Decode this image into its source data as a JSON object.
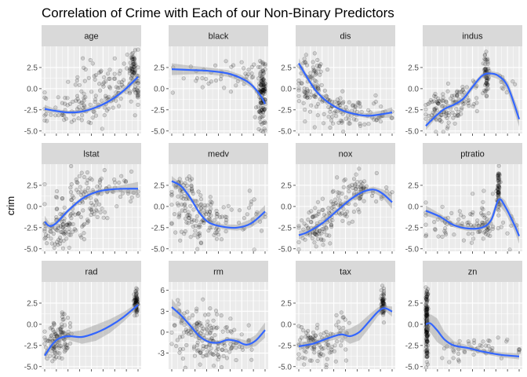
{
  "chart_data": {
    "type": "scatter",
    "title": "Correlation of Crime with Each of our Non-Binary Predictors",
    "ylabel": "crim",
    "facet_layout": {
      "columns": 4,
      "rows": 3
    },
    "smoother": true,
    "grid": true,
    "colors": {
      "panel_bg": "#ebebeb",
      "strip_bg": "#d9d9d9",
      "grid_major": "#ffffff",
      "points": "#000000",
      "smooth_line": "#3366ff",
      "ribbon": "#999999"
    },
    "panels": [
      {
        "name": "age",
        "ylim": [
          -5.3,
          5.0
        ],
        "y_ticks": [
          2.5,
          0.0,
          -2.5,
          -5.0
        ],
        "y_tick_labels": [
          "2.5",
          "0.0",
          "-2.5",
          "-5.0"
        ],
        "clusters": [
          {
            "x": 0.75,
            "y": 0.6,
            "sx": 0.22,
            "sy": 1.5,
            "n": 110
          },
          {
            "x": 0.3,
            "y": -2.3,
            "sx": 0.22,
            "sy": 1.0,
            "n": 70
          },
          {
            "x": 0.95,
            "y": 2.6,
            "sx": 0.02,
            "sy": 0.9,
            "n": 40
          }
        ],
        "smooth": [
          [
            0.0,
            -2.4
          ],
          [
            0.1,
            -2.6
          ],
          [
            0.25,
            -2.8
          ],
          [
            0.4,
            -2.7
          ],
          [
            0.55,
            -2.2
          ],
          [
            0.7,
            -1.4
          ],
          [
            0.85,
            -0.2
          ],
          [
            1.0,
            1.4
          ]
        ],
        "band": [
          0.5,
          0.25,
          0.2,
          0.25,
          0.3,
          0.3,
          0.3,
          0.45
        ]
      },
      {
        "name": "black",
        "ylim": [
          -5.3,
          5.0
        ],
        "y_ticks": [
          2.5,
          0.0,
          -2.5,
          -5.0
        ],
        "y_tick_labels": [
          "2.5",
          "0.0",
          "-2.5",
          "-5.0"
        ],
        "clusters": [
          {
            "x": 0.97,
            "y": -0.8,
            "sx": 0.025,
            "sy": 1.8,
            "n": 130
          },
          {
            "x": 0.55,
            "y": 1.7,
            "sx": 0.28,
            "sy": 1.0,
            "n": 45
          }
        ],
        "smooth": [
          [
            0.0,
            2.3
          ],
          [
            0.2,
            2.2
          ],
          [
            0.4,
            2.1
          ],
          [
            0.6,
            1.8
          ],
          [
            0.75,
            1.2
          ],
          [
            0.85,
            0.5
          ],
          [
            0.95,
            -0.8
          ],
          [
            1.0,
            -1.8
          ]
        ],
        "band": [
          0.7,
          0.5,
          0.4,
          0.4,
          0.4,
          0.35,
          0.2,
          0.2
        ]
      },
      {
        "name": "dis",
        "ylim": [
          -5.3,
          5.0
        ],
        "y_ticks": [
          2.5,
          0.0,
          -2.5,
          -5.0
        ],
        "y_tick_labels": [
          "2.5",
          "0.0",
          "-2.5",
          "-5.0"
        ],
        "clusters": [
          {
            "x": 0.12,
            "y": 1.0,
            "sx": 0.07,
            "sy": 1.6,
            "n": 80
          },
          {
            "x": 0.45,
            "y": -2.4,
            "sx": 0.18,
            "sy": 1.0,
            "n": 90
          },
          {
            "x": 0.85,
            "y": -3.0,
            "sx": 0.08,
            "sy": 0.7,
            "n": 20
          }
        ],
        "smooth": [
          [
            0.0,
            3.0
          ],
          [
            0.08,
            1.5
          ],
          [
            0.18,
            -0.2
          ],
          [
            0.3,
            -1.5
          ],
          [
            0.45,
            -2.5
          ],
          [
            0.6,
            -3.0
          ],
          [
            0.75,
            -3.2
          ],
          [
            0.9,
            -3.0
          ],
          [
            1.0,
            -2.8
          ]
        ],
        "band": [
          0.6,
          0.3,
          0.25,
          0.2,
          0.2,
          0.2,
          0.3,
          0.45,
          0.6
        ]
      },
      {
        "name": "indus",
        "ylim": [
          -5.3,
          5.0
        ],
        "y_ticks": [
          2.5,
          0.0,
          -2.5,
          -5.0
        ],
        "y_tick_labels": [
          "2.5",
          "0.0",
          "-2.5",
          "-5.0"
        ],
        "clusters": [
          {
            "x": 0.2,
            "y": -2.2,
            "sx": 0.12,
            "sy": 1.1,
            "n": 90
          },
          {
            "x": 0.65,
            "y": 1.9,
            "sx": 0.012,
            "sy": 1.3,
            "n": 60
          },
          {
            "x": 0.45,
            "y": -0.8,
            "sx": 0.1,
            "sy": 1.0,
            "n": 30
          },
          {
            "x": 0.85,
            "y": 0.3,
            "sx": 0.04,
            "sy": 0.8,
            "n": 10
          }
        ],
        "smooth": [
          [
            0.0,
            -4.4
          ],
          [
            0.1,
            -3.3
          ],
          [
            0.2,
            -2.4
          ],
          [
            0.3,
            -1.9
          ],
          [
            0.4,
            -1.2
          ],
          [
            0.5,
            0.2
          ],
          [
            0.6,
            1.5
          ],
          [
            0.68,
            1.8
          ],
          [
            0.78,
            1.5
          ],
          [
            0.88,
            0.2
          ],
          [
            1.0,
            -3.6
          ]
        ],
        "band": [
          0.5,
          0.3,
          0.25,
          0.3,
          0.35,
          0.35,
          0.3,
          0.3,
          0.4,
          0.6,
          0.9
        ]
      },
      {
        "name": "lstat",
        "ylim": [
          -5.3,
          5.0
        ],
        "y_ticks": [
          2.5,
          0.0,
          -2.5,
          -5.0
        ],
        "y_tick_labels": [
          "2.5",
          "0.0",
          "-2.5",
          "-5.0"
        ],
        "clusters": [
          {
            "x": 0.2,
            "y": -2.5,
            "sx": 0.12,
            "sy": 1.2,
            "n": 90
          },
          {
            "x": 0.45,
            "y": 1.0,
            "sx": 0.17,
            "sy": 1.5,
            "n": 90
          },
          {
            "x": 0.8,
            "y": 2.2,
            "sx": 0.1,
            "sy": 0.9,
            "n": 20
          }
        ],
        "smooth": [
          [
            0.0,
            -1.8
          ],
          [
            0.05,
            -2.3
          ],
          [
            0.12,
            -2.0
          ],
          [
            0.25,
            -0.5
          ],
          [
            0.4,
            0.9
          ],
          [
            0.55,
            1.7
          ],
          [
            0.7,
            2.0
          ],
          [
            0.85,
            2.1
          ],
          [
            1.0,
            2.1
          ]
        ],
        "band": [
          0.7,
          0.35,
          0.25,
          0.25,
          0.25,
          0.25,
          0.3,
          0.45,
          0.8
        ]
      },
      {
        "name": "medv",
        "ylim": [
          -5.3,
          5.0
        ],
        "y_ticks": [
          2.5,
          0.0,
          -2.5,
          -5.0
        ],
        "y_tick_labels": [
          "2.5",
          "0.0",
          "-2.5",
          "-5.0"
        ],
        "clusters": [
          {
            "x": 0.12,
            "y": 1.8,
            "sx": 0.08,
            "sy": 1.2,
            "n": 50
          },
          {
            "x": 0.35,
            "y": -1.5,
            "sx": 0.15,
            "sy": 1.3,
            "n": 110
          },
          {
            "x": 0.85,
            "y": -1.5,
            "sx": 0.1,
            "sy": 1.5,
            "n": 20
          }
        ],
        "smooth": [
          [
            0.0,
            3.0
          ],
          [
            0.1,
            2.4
          ],
          [
            0.2,
            1.0
          ],
          [
            0.3,
            -0.8
          ],
          [
            0.4,
            -1.9
          ],
          [
            0.55,
            -2.4
          ],
          [
            0.7,
            -2.5
          ],
          [
            0.85,
            -2.0
          ],
          [
            1.0,
            -0.6
          ]
        ],
        "band": [
          0.6,
          0.3,
          0.25,
          0.2,
          0.2,
          0.3,
          0.35,
          0.5,
          0.75
        ]
      },
      {
        "name": "nox",
        "ylim": [
          -5.3,
          5.0
        ],
        "y_ticks": [
          2.5,
          0.0,
          -2.5,
          -5.0
        ],
        "y_tick_labels": [
          "2.5",
          "0.0",
          "-2.5",
          "-5.0"
        ],
        "clusters": [
          {
            "x": 0.2,
            "y": -2.4,
            "sx": 0.1,
            "sy": 1.0,
            "n": 80
          },
          {
            "x": 0.45,
            "y": 0.0,
            "sx": 0.1,
            "sy": 1.3,
            "n": 50
          },
          {
            "x": 0.67,
            "y": 2.0,
            "sx": 0.06,
            "sy": 0.9,
            "n": 45
          },
          {
            "x": 0.9,
            "y": 1.5,
            "sx": 0.06,
            "sy": 0.7,
            "n": 10
          }
        ],
        "smooth": [
          [
            0.0,
            -3.4
          ],
          [
            0.1,
            -3.0
          ],
          [
            0.25,
            -2.0
          ],
          [
            0.4,
            -0.6
          ],
          [
            0.55,
            0.8
          ],
          [
            0.68,
            1.7
          ],
          [
            0.8,
            2.0
          ],
          [
            0.9,
            1.5
          ],
          [
            1.0,
            0.5
          ]
        ],
        "band": [
          0.5,
          0.3,
          0.25,
          0.25,
          0.3,
          0.3,
          0.35,
          0.5,
          0.8
        ]
      },
      {
        "name": "ptratio",
        "ylim": [
          -5.3,
          5.0
        ],
        "y_ticks": [
          2.5,
          0.0,
          -2.5,
          -5.0
        ],
        "y_tick_labels": [
          "2.5",
          "0.0",
          "-2.5",
          "-5.0"
        ],
        "clusters": [
          {
            "x": 0.4,
            "y": -2.0,
            "sx": 0.25,
            "sy": 1.3,
            "n": 80
          },
          {
            "x": 0.78,
            "y": 2.0,
            "sx": 0.008,
            "sy": 1.2,
            "n": 60
          },
          {
            "x": 0.65,
            "y": -2.3,
            "sx": 0.04,
            "sy": 0.8,
            "n": 25
          }
        ],
        "smooth": [
          [
            0.0,
            -0.5
          ],
          [
            0.15,
            -1.2
          ],
          [
            0.3,
            -2.2
          ],
          [
            0.45,
            -2.6
          ],
          [
            0.6,
            -2.5
          ],
          [
            0.7,
            -1.6
          ],
          [
            0.78,
            0.8
          ],
          [
            0.85,
            0.0
          ],
          [
            0.95,
            -2.2
          ],
          [
            1.0,
            -3.5
          ]
        ],
        "band": [
          0.6,
          0.35,
          0.3,
          0.3,
          0.35,
          0.45,
          0.6,
          0.7,
          0.7,
          0.9
        ]
      },
      {
        "name": "rad",
        "ylim": [
          -5.3,
          5.0
        ],
        "y_ticks": [
          2.5,
          0.0,
          -2.5,
          -5.0
        ],
        "y_tick_labels": [
          "2.5",
          "0.0",
          "-2.5",
          "-5.0"
        ],
        "clusters": [
          {
            "x": 0.1,
            "y": -2.0,
            "sx": 0.05,
            "sy": 1.2,
            "n": 60
          },
          {
            "x": 0.2,
            "y": -1.5,
            "sx": 0.04,
            "sy": 1.2,
            "n": 50
          },
          {
            "x": 0.98,
            "y": 2.4,
            "sx": 0.01,
            "sy": 0.8,
            "n": 70
          }
        ],
        "smooth": [
          [
            0.0,
            -3.7
          ],
          [
            0.08,
            -2.4
          ],
          [
            0.15,
            -1.7
          ],
          [
            0.25,
            -1.4
          ],
          [
            0.4,
            -1.5
          ],
          [
            0.55,
            -1.0
          ],
          [
            0.7,
            -0.2
          ],
          [
            0.85,
            0.9
          ],
          [
            1.0,
            2.3
          ]
        ],
        "band": [
          0.5,
          0.3,
          0.35,
          0.45,
          0.8,
          0.95,
          0.8,
          0.55,
          0.3
        ]
      },
      {
        "name": "rm",
        "ylim": [
          -5.3,
          7.2
        ],
        "y_ticks": [
          6,
          3,
          0,
          -3
        ],
        "y_tick_labels": [
          "6",
          "3",
          "0",
          "-3"
        ],
        "clusters": [
          {
            "x": 0.35,
            "y": -0.5,
            "sx": 0.15,
            "sy": 1.8,
            "n": 120
          },
          {
            "x": 0.6,
            "y": -1.5,
            "sx": 0.15,
            "sy": 1.5,
            "n": 40
          },
          {
            "x": 0.1,
            "y": 1.8,
            "sx": 0.06,
            "sy": 1.5,
            "n": 12
          }
        ],
        "smooth": [
          [
            0.0,
            3.6
          ],
          [
            0.1,
            2.4
          ],
          [
            0.2,
            0.9
          ],
          [
            0.3,
            -0.6
          ],
          [
            0.4,
            -1.4
          ],
          [
            0.5,
            -1.5
          ],
          [
            0.6,
            -1.1
          ],
          [
            0.7,
            -1.3
          ],
          [
            0.8,
            -1.8
          ],
          [
            0.9,
            -1.2
          ],
          [
            1.0,
            0.3
          ]
        ],
        "band": [
          1.2,
          0.7,
          0.45,
          0.3,
          0.3,
          0.3,
          0.35,
          0.45,
          0.6,
          0.8,
          1.1
        ]
      },
      {
        "name": "tax",
        "ylim": [
          -5.3,
          5.0
        ],
        "y_ticks": [
          2.5,
          0.0,
          -2.5,
          -5.0
        ],
        "y_tick_labels": [
          "2.5",
          "0.0",
          "-2.5",
          "-5.0"
        ],
        "clusters": [
          {
            "x": 0.2,
            "y": -2.2,
            "sx": 0.12,
            "sy": 1.1,
            "n": 90
          },
          {
            "x": 0.45,
            "y": -0.5,
            "sx": 0.04,
            "sy": 1.5,
            "n": 20
          },
          {
            "x": 0.9,
            "y": 2.2,
            "sx": 0.01,
            "sy": 0.8,
            "n": 60
          }
        ],
        "smooth": [
          [
            0.0,
            -2.6
          ],
          [
            0.15,
            -2.3
          ],
          [
            0.3,
            -1.7
          ],
          [
            0.45,
            -1.2
          ],
          [
            0.55,
            -1.4
          ],
          [
            0.65,
            -0.9
          ],
          [
            0.75,
            0.3
          ],
          [
            0.85,
            1.5
          ],
          [
            0.92,
            1.9
          ],
          [
            1.0,
            1.5
          ]
        ],
        "band": [
          0.5,
          0.3,
          0.35,
          0.45,
          0.9,
          1.0,
          0.8,
          0.5,
          0.3,
          0.6
        ]
      },
      {
        "name": "zn",
        "ylim": [
          -5.3,
          5.0
        ],
        "y_ticks": [
          2.5,
          0.0,
          -2.5,
          -5.0
        ],
        "y_tick_labels": [
          "2.5",
          "0.0",
          "-2.5",
          "-5.0"
        ],
        "clusters": [
          {
            "x": 0.01,
            "y": 0.0,
            "sx": 0.006,
            "sy": 2.2,
            "n": 160
          },
          {
            "x": 0.5,
            "y": -3.0,
            "sx": 0.25,
            "sy": 0.7,
            "n": 50
          }
        ],
        "smooth": [
          [
            0.0,
            0.0
          ],
          [
            0.05,
            0.1
          ],
          [
            0.12,
            -0.7
          ],
          [
            0.2,
            -1.8
          ],
          [
            0.3,
            -2.5
          ],
          [
            0.45,
            -2.8
          ],
          [
            0.6,
            -3.2
          ],
          [
            0.8,
            -3.6
          ],
          [
            1.0,
            -3.8
          ]
        ],
        "band": [
          0.6,
          1.1,
          1.4,
          0.9,
          0.5,
          0.3,
          0.25,
          0.3,
          0.35
        ]
      }
    ]
  }
}
